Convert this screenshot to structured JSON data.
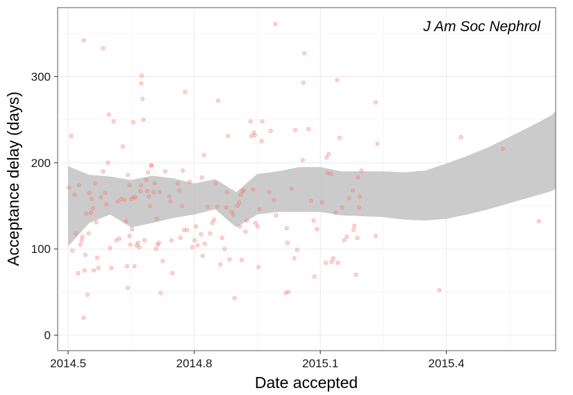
{
  "chart_data": {
    "type": "scatter",
    "title": "",
    "annotation": "J Am Soc Nephrol",
    "xlabel": "Date accepted",
    "ylabel": "Acceptance delay (days)",
    "xlim": [
      2014.475,
      2015.66
    ],
    "ylim": [
      -18,
      380
    ],
    "x_ticks": [
      2014.5,
      2014.8,
      2015.1,
      2015.4
    ],
    "x_tick_labels": [
      "2014.5",
      "2014.8",
      "2015.1",
      "2015.4"
    ],
    "y_ticks": [
      0,
      100,
      200,
      300
    ],
    "y_tick_labels": [
      "0",
      "100",
      "200",
      "300"
    ],
    "grid": true,
    "legend": "none",
    "point_color": "#f8766d",
    "ribbon_color": "#bdbdbd",
    "points": [
      [
        2014.502,
        171
      ],
      [
        2014.507,
        231
      ],
      [
        2014.51,
        98
      ],
      [
        2014.515,
        163
      ],
      [
        2014.518,
        118
      ],
      [
        2014.524,
        72
      ],
      [
        2014.526,
        174
      ],
      [
        2014.529,
        105
      ],
      [
        2014.532,
        110
      ],
      [
        2014.534,
        114
      ],
      [
        2014.537,
        20
      ],
      [
        2014.537,
        342
      ],
      [
        2014.539,
        75
      ],
      [
        2014.541,
        93
      ],
      [
        2014.543,
        141
      ],
      [
        2014.546,
        47
      ],
      [
        2014.549,
        118
      ],
      [
        2014.551,
        165
      ],
      [
        2014.554,
        142
      ],
      [
        2014.556,
        158
      ],
      [
        2014.559,
        147
      ],
      [
        2014.561,
        75
      ],
      [
        2014.564,
        176
      ],
      [
        2014.567,
        131
      ],
      [
        2014.569,
        90
      ],
      [
        2014.572,
        78
      ],
      [
        2014.578,
        160
      ],
      [
        2014.583,
        190
      ],
      [
        2014.583,
        333
      ],
      [
        2014.588,
        165
      ],
      [
        2014.591,
        152
      ],
      [
        2014.595,
        200
      ],
      [
        2014.597,
        256
      ],
      [
        2014.6,
        101
      ],
      [
        2014.603,
        78
      ],
      [
        2014.608,
        248
      ],
      [
        2014.615,
        110
      ],
      [
        2014.618,
        155
      ],
      [
        2014.622,
        112
      ],
      [
        2014.626,
        158
      ],
      [
        2014.63,
        219
      ],
      [
        2014.634,
        157
      ],
      [
        2014.638,
        132
      ],
      [
        2014.64,
        80
      ],
      [
        2014.642,
        186
      ],
      [
        2014.642,
        55
      ],
      [
        2014.646,
        115
      ],
      [
        2014.646,
        174
      ],
      [
        2014.648,
        105
      ],
      [
        2014.65,
        158
      ],
      [
        2014.652,
        123
      ],
      [
        2014.655,
        160
      ],
      [
        2014.655,
        247
      ],
      [
        2014.658,
        80
      ],
      [
        2014.66,
        160
      ],
      [
        2014.663,
        104
      ],
      [
        2014.666,
        107
      ],
      [
        2014.669,
        102
      ],
      [
        2014.672,
        167
      ],
      [
        2014.673,
        174
      ],
      [
        2014.674,
        292
      ],
      [
        2014.675,
        301
      ],
      [
        2014.677,
        274
      ],
      [
        2014.679,
        250
      ],
      [
        2014.682,
        110
      ],
      [
        2014.686,
        180
      ],
      [
        2014.688,
        167
      ],
      [
        2014.69,
        189
      ],
      [
        2014.692,
        161
      ],
      [
        2014.695,
        150
      ],
      [
        2014.697,
        197
      ],
      [
        2014.699,
        197
      ],
      [
        2014.703,
        166
      ],
      [
        2014.706,
        176
      ],
      [
        2014.709,
        100
      ],
      [
        2014.711,
        135
      ],
      [
        2014.713,
        105
      ],
      [
        2014.716,
        107
      ],
      [
        2014.718,
        166
      ],
      [
        2014.72,
        49
      ],
      [
        2014.725,
        86
      ],
      [
        2014.731,
        190
      ],
      [
        2014.741,
        161
      ],
      [
        2014.743,
        155
      ],
      [
        2014.746,
        110
      ],
      [
        2014.748,
        72
      ],
      [
        2014.761,
        176
      ],
      [
        2014.764,
        168
      ],
      [
        2014.767,
        113
      ],
      [
        2014.771,
        150
      ],
      [
        2014.773,
        191
      ],
      [
        2014.776,
        122
      ],
      [
        2014.778,
        282
      ],
      [
        2014.783,
        122
      ],
      [
        2014.789,
        178
      ],
      [
        2014.795,
        102
      ],
      [
        2014.801,
        110
      ],
      [
        2014.804,
        126
      ],
      [
        2014.808,
        104
      ],
      [
        2014.816,
        117
      ],
      [
        2014.818,
        183
      ],
      [
        2014.82,
        92
      ],
      [
        2014.823,
        209
      ],
      [
        2014.825,
        106
      ],
      [
        2014.832,
        149
      ],
      [
        2014.838,
        118
      ],
      [
        2014.843,
        130
      ],
      [
        2014.847,
        134
      ],
      [
        2014.851,
        176
      ],
      [
        2014.855,
        149
      ],
      [
        2014.857,
        272
      ],
      [
        2014.862,
        82
      ],
      [
        2014.866,
        113
      ],
      [
        2014.872,
        100
      ],
      [
        2014.876,
        148
      ],
      [
        2014.878,
        166
      ],
      [
        2014.88,
        231
      ],
      [
        2014.884,
        88
      ],
      [
        2014.889,
        143
      ],
      [
        2014.893,
        140
      ],
      [
        2014.896,
        43
      ],
      [
        2014.903,
        150
      ],
      [
        2014.907,
        154
      ],
      [
        2014.909,
        126
      ],
      [
        2014.911,
        163
      ],
      [
        2014.913,
        87
      ],
      [
        2014.915,
        167
      ],
      [
        2014.918,
        168
      ],
      [
        2014.922,
        120
      ],
      [
        2014.925,
        133
      ],
      [
        2014.934,
        248
      ],
      [
        2014.936,
        231
      ],
      [
        2014.94,
        169
      ],
      [
        2014.942,
        235
      ],
      [
        2014.944,
        232
      ],
      [
        2014.946,
        130
      ],
      [
        2014.951,
        126
      ],
      [
        2014.953,
        79
      ],
      [
        2014.955,
        146
      ],
      [
        2014.96,
        225
      ],
      [
        2014.962,
        248
      ],
      [
        2014.979,
        166
      ],
      [
        2014.982,
        237
      ],
      [
        2014.99,
        157
      ],
      [
        2014.993,
        361
      ],
      [
        2014.995,
        139
      ],
      [
        2015.018,
        49
      ],
      [
        2015.02,
        124
      ],
      [
        2015.022,
        107
      ],
      [
        2015.024,
        50
      ],
      [
        2015.032,
        170
      ],
      [
        2015.038,
        89
      ],
      [
        2015.04,
        238
      ],
      [
        2015.045,
        99
      ],
      [
        2015.058,
        203
      ],
      [
        2015.06,
        293
      ],
      [
        2015.062,
        327
      ],
      [
        2015.072,
        239
      ],
      [
        2015.078,
        156
      ],
      [
        2015.084,
        133
      ],
      [
        2015.086,
        68
      ],
      [
        2015.092,
        123
      ],
      [
        2015.104,
        154
      ],
      [
        2015.113,
        84
      ],
      [
        2015.115,
        206
      ],
      [
        2015.117,
        188
      ],
      [
        2015.12,
        210
      ],
      [
        2015.125,
        187
      ],
      [
        2015.127,
        85
      ],
      [
        2015.131,
        89
      ],
      [
        2015.136,
        142
      ],
      [
        2015.14,
        296
      ],
      [
        2015.142,
        84
      ],
      [
        2015.146,
        229
      ],
      [
        2015.152,
        148
      ],
      [
        2015.157,
        110
      ],
      [
        2015.163,
        114
      ],
      [
        2015.169,
        159
      ],
      [
        2015.177,
        168
      ],
      [
        2015.179,
        122
      ],
      [
        2015.181,
        127
      ],
      [
        2015.185,
        70
      ],
      [
        2015.188,
        113
      ],
      [
        2015.19,
        183
      ],
      [
        2015.192,
        148
      ],
      [
        2015.194,
        161
      ],
      [
        2015.198,
        191
      ],
      [
        2015.232,
        115
      ],
      [
        2015.232,
        270
      ],
      [
        2015.236,
        222
      ],
      [
        2015.383,
        52
      ],
      [
        2015.435,
        230
      ],
      [
        2015.534,
        216
      ],
      [
        2015.62,
        132
      ]
    ],
    "smooth_band": {
      "x": [
        2014.5,
        2014.55,
        2014.6,
        2014.65,
        2014.7,
        2014.75,
        2014.8,
        2014.85,
        2014.9,
        2014.95,
        2015.0,
        2015.05,
        2015.1,
        2015.15,
        2015.2,
        2015.25,
        2015.3,
        2015.35,
        2015.4,
        2015.45,
        2015.5,
        2015.55,
        2015.6,
        2015.65,
        2015.66
      ],
      "lower": [
        103,
        130,
        140,
        125,
        130,
        136,
        140,
        146,
        125,
        140,
        143,
        143,
        143,
        139,
        138,
        137,
        134,
        133,
        135,
        140,
        146,
        153,
        160,
        167,
        170
      ],
      "upper": [
        196,
        186,
        184,
        180,
        185,
        182,
        176,
        181,
        166,
        187,
        190,
        195,
        195,
        190,
        190,
        190,
        189,
        191,
        199,
        208,
        218,
        230,
        242,
        255,
        260
      ]
    }
  }
}
